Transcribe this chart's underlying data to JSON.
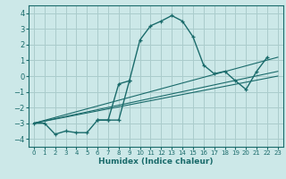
{
  "xlabel": "Humidex (Indice chaleur)",
  "bg_color": "#cce8e8",
  "grid_color": "#aacccc",
  "line_color": "#1a6b6b",
  "xlim": [
    -0.5,
    23.5
  ],
  "ylim": [
    -4.5,
    4.5
  ],
  "xticks": [
    0,
    1,
    2,
    3,
    4,
    5,
    6,
    7,
    8,
    9,
    10,
    11,
    12,
    13,
    14,
    15,
    16,
    17,
    18,
    19,
    20,
    21,
    22,
    23
  ],
  "yticks": [
    -4,
    -3,
    -2,
    -1,
    0,
    1,
    2,
    3,
    4
  ],
  "series0_x": [
    0,
    1,
    2,
    3,
    4,
    5,
    6,
    7,
    8,
    9,
    10,
    11,
    12,
    13,
    14,
    15,
    16,
    17,
    18,
    19,
    20,
    21,
    22
  ],
  "series0_y": [
    -3.0,
    -3.0,
    -3.7,
    -3.5,
    -3.6,
    -3.6,
    -2.8,
    -2.8,
    -2.8,
    -0.3,
    2.3,
    3.2,
    3.5,
    3.85,
    3.5,
    2.5,
    0.7,
    0.15,
    0.3,
    -0.3,
    -0.85,
    0.3,
    1.2
  ],
  "series1_x": [
    6,
    7,
    8,
    9
  ],
  "series1_y": [
    -2.8,
    -2.8,
    -0.5,
    -0.3
  ],
  "ref_lines": [
    {
      "x": [
        0,
        23
      ],
      "y": [
        -3.0,
        1.2
      ]
    },
    {
      "x": [
        0,
        23
      ],
      "y": [
        -3.0,
        0.3
      ]
    },
    {
      "x": [
        0,
        23
      ],
      "y": [
        -3.0,
        0.0
      ]
    }
  ]
}
